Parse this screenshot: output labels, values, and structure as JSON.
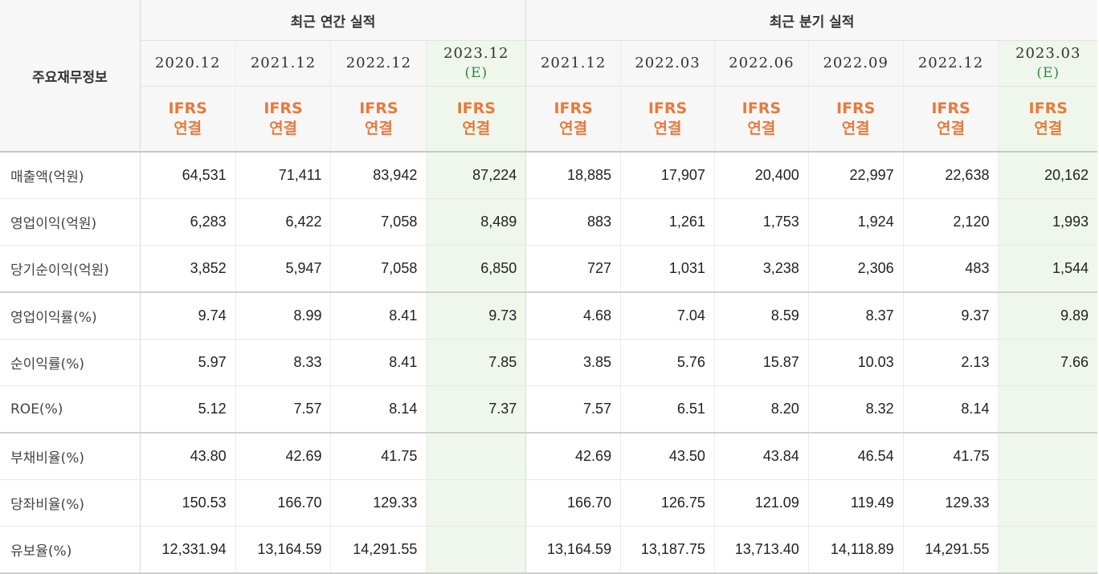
{
  "header": {
    "row_label": "주요재무정보",
    "annual_title": "최근 연간 실적",
    "quarterly_title": "최근 분기 실적",
    "estimate_marker": "(E)",
    "basis_line1": "IFRS",
    "basis_line2": "연결"
  },
  "annual_periods": [
    "2020.12",
    "2021.12",
    "2022.12",
    "2023.12"
  ],
  "quarterly_periods": [
    "2021.12",
    "2022.03",
    "2022.06",
    "2022.09",
    "2022.12",
    "2023.03"
  ],
  "rows": [
    {
      "label": "매출액(억원)",
      "annual": [
        "64,531",
        "71,411",
        "83,942",
        "87,224"
      ],
      "quarterly": [
        "18,885",
        "17,907",
        "20,400",
        "22,997",
        "22,638",
        "20,162"
      ]
    },
    {
      "label": "영업이익(억원)",
      "annual": [
        "6,283",
        "6,422",
        "7,058",
        "8,489"
      ],
      "quarterly": [
        "883",
        "1,261",
        "1,753",
        "1,924",
        "2,120",
        "1,993"
      ]
    },
    {
      "label": "당기순이익(억원)",
      "annual": [
        "3,852",
        "5,947",
        "7,058",
        "6,850"
      ],
      "quarterly": [
        "727",
        "1,031",
        "3,238",
        "2,306",
        "483",
        "1,544"
      ]
    },
    {
      "label": "영업이익률(%)",
      "annual": [
        "9.74",
        "8.99",
        "8.41",
        "9.73"
      ],
      "quarterly": [
        "4.68",
        "7.04",
        "8.59",
        "8.37",
        "9.37",
        "9.89"
      ]
    },
    {
      "label": "순이익률(%)",
      "annual": [
        "5.97",
        "8.33",
        "8.41",
        "7.85"
      ],
      "quarterly": [
        "3.85",
        "5.76",
        "15.87",
        "10.03",
        "2.13",
        "7.66"
      ]
    },
    {
      "label": "ROE(%)",
      "annual": [
        "5.12",
        "7.57",
        "8.14",
        "7.37"
      ],
      "quarterly": [
        "7.57",
        "6.51",
        "8.20",
        "8.32",
        "8.14",
        ""
      ]
    },
    {
      "label": "부채비율(%)",
      "annual": [
        "43.80",
        "42.69",
        "41.75",
        ""
      ],
      "quarterly": [
        "42.69",
        "43.50",
        "43.84",
        "46.54",
        "41.75",
        ""
      ]
    },
    {
      "label": "당좌비율(%)",
      "annual": [
        "150.53",
        "166.70",
        "129.33",
        ""
      ],
      "quarterly": [
        "166.70",
        "126.75",
        "121.09",
        "119.49",
        "129.33",
        ""
      ]
    },
    {
      "label": "유보율(%)",
      "annual": [
        "12,331.94",
        "13,164.59",
        "14,291.55",
        ""
      ],
      "quarterly": [
        "13,164.59",
        "13,187.75",
        "13,713.40",
        "14,118.89",
        "14,291.55",
        ""
      ]
    }
  ]
}
